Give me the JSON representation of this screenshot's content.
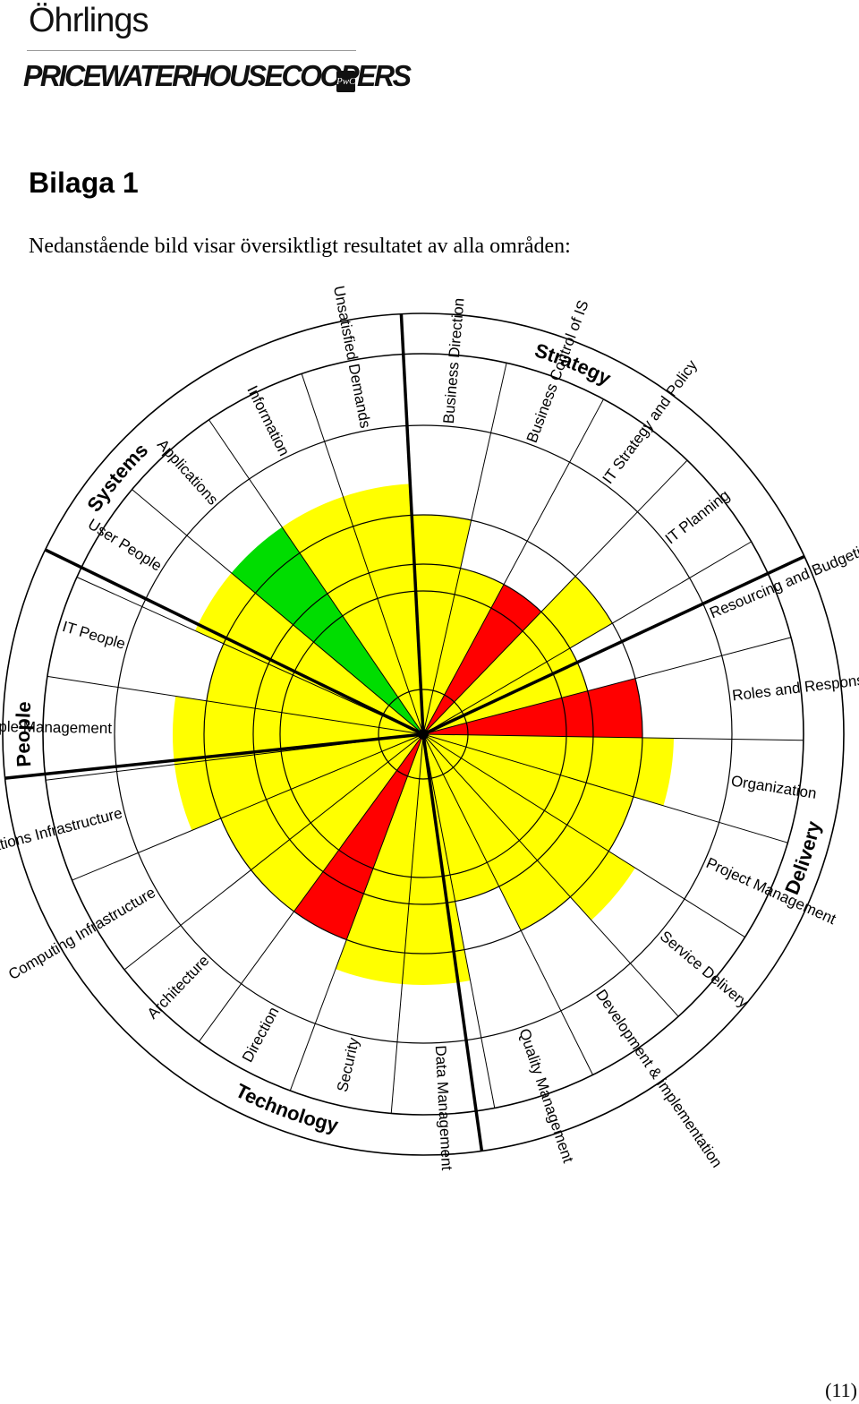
{
  "header": {
    "brand_name": "Öhrlings",
    "company_logo_text": "PRICEWATERHOUSECOOPERS",
    "company_mark_text": "PwC"
  },
  "heading": "Bilaga 1",
  "intro_text": "Nedanstående bild visar översiktligt resultatet av alla områden:",
  "page_number": "(11)",
  "colors": {
    "yellow": "#ffff00",
    "red": "#ff0000",
    "green": "#00dd00",
    "line": "#000000"
  },
  "wheel": {
    "groups": [
      {
        "name": "Systems"
      },
      {
        "name": "Strategy"
      },
      {
        "name": "Delivery"
      },
      {
        "name": "Technology"
      },
      {
        "name": "People"
      }
    ],
    "segments": [
      {
        "label": "Business Direction",
        "level": 3,
        "color": "yellow"
      },
      {
        "label": "Business Control of IS",
        "level": 2,
        "color": "yellow"
      },
      {
        "label": "IT Strategy and Policy",
        "level": 2,
        "color": "red"
      },
      {
        "label": "IT Planning",
        "level": 3,
        "color": "yellow"
      },
      {
        "label": "Resourcing and Budgeting",
        "level": 2,
        "color": "yellow"
      },
      {
        "label": "Roles and Responsibilities",
        "level": 3,
        "color": "red"
      },
      {
        "label": "Organization",
        "level": 4,
        "color": "yellow"
      },
      {
        "label": "Project Management",
        "level": 3,
        "color": "yellow"
      },
      {
        "label": "Service Delivery",
        "level": 4,
        "color": "yellow"
      },
      {
        "label": "Development & implementation",
        "level": 3,
        "color": "yellow"
      },
      {
        "label": "Quality Management",
        "level": 2,
        "color": "yellow"
      },
      {
        "label": "Data Management",
        "level": 4,
        "color": "yellow"
      },
      {
        "label": "Security",
        "level": 4,
        "color": "yellow"
      },
      {
        "label": "Direction",
        "level": 3,
        "color": "red"
      },
      {
        "label": "Architecture",
        "level": 3,
        "color": "yellow"
      },
      {
        "label": "Computing Infrastructure",
        "level": 3,
        "color": "yellow"
      },
      {
        "label": "Communications Infrastructure",
        "level": 4,
        "color": "yellow"
      },
      {
        "label": "People Management",
        "level": 4,
        "color": "yellow"
      },
      {
        "label": "IT People",
        "level": 3,
        "color": "yellow"
      },
      {
        "label": "User People",
        "level": 4,
        "color": "yellow"
      },
      {
        "label": "Applications",
        "level": 4,
        "color": "green"
      },
      {
        "label": "Information",
        "level": 4,
        "color": "yellow"
      },
      {
        "label": "Unsatisfied Demands",
        "level": 4,
        "color": "yellow"
      }
    ]
  }
}
